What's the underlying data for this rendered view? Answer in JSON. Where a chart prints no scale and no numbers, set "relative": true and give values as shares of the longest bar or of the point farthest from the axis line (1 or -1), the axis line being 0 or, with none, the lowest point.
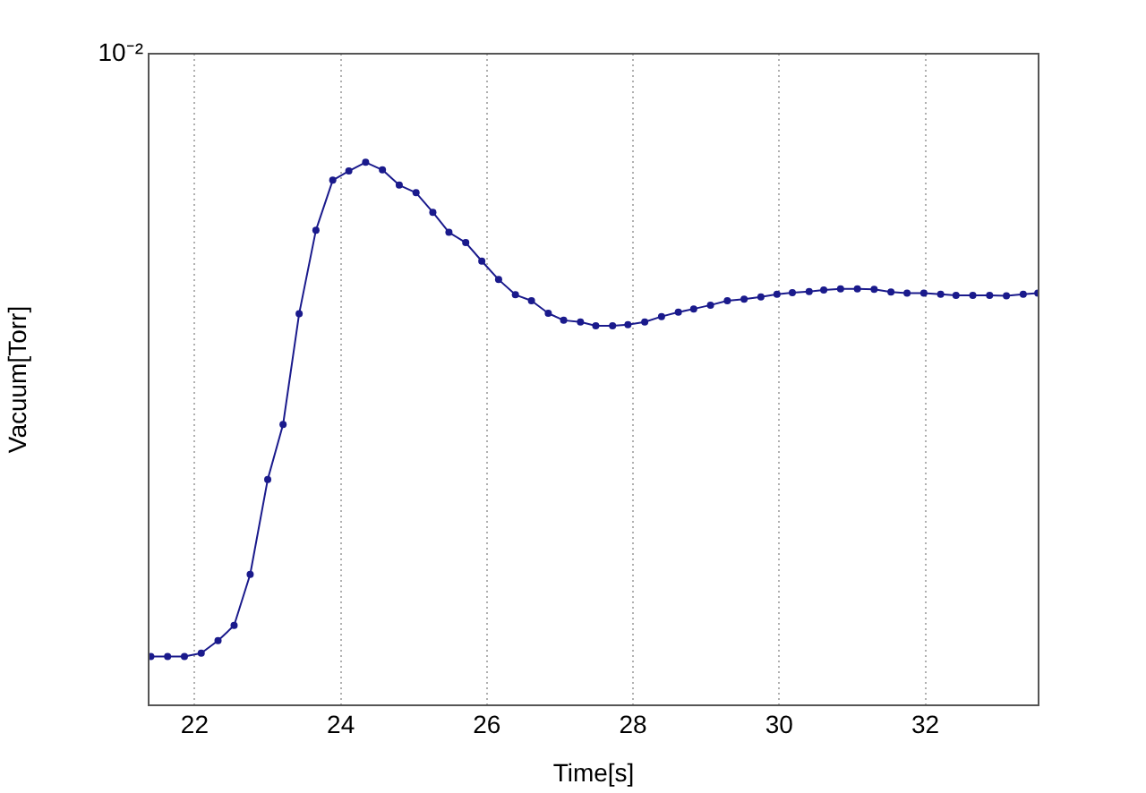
{
  "chart_data": {
    "type": "line",
    "xlabel": "Time[s]",
    "ylabel": "Vacuum[Torr]",
    "relative": true,
    "annotations": [
      "10⁻²"
    ],
    "x": [
      21.4,
      21.63,
      21.86,
      22.09,
      22.32,
      22.54,
      22.76,
      23.0,
      23.21,
      23.43,
      23.66,
      23.89,
      24.11,
      24.34,
      24.57,
      24.8,
      25.03,
      25.26,
      25.48,
      25.71,
      25.93,
      26.16,
      26.39,
      26.61,
      26.84,
      27.05,
      27.28,
      27.49,
      27.72,
      27.93,
      28.16,
      28.39,
      28.62,
      28.83,
      29.06,
      29.29,
      29.52,
      29.75,
      29.97,
      30.18,
      30.41,
      30.61,
      30.84,
      31.07,
      31.3,
      31.53,
      31.75,
      31.98,
      32.21,
      32.42,
      32.65,
      32.88,
      33.11,
      33.34,
      33.54
    ],
    "series": [
      {
        "color": "#1a1a8c",
        "values": [
          0.09,
          0.09,
          0.09,
          0.096,
          0.119,
          0.147,
          0.241,
          0.416,
          0.517,
          0.721,
          0.875,
          0.967,
          0.984,
          1,
          0.986,
          0.958,
          0.944,
          0.908,
          0.871,
          0.852,
          0.818,
          0.784,
          0.756,
          0.745,
          0.722,
          0.709,
          0.706,
          0.699,
          0.699,
          0.701,
          0.706,
          0.716,
          0.724,
          0.73,
          0.737,
          0.745,
          0.748,
          0.752,
          0.757,
          0.76,
          0.762,
          0.765,
          0.767,
          0.767,
          0.766,
          0.761,
          0.759,
          0.759,
          0.757,
          0.755,
          0.755,
          0.755,
          0.754,
          0.757,
          0.759
        ]
      }
    ],
    "xlim": [
      21.37,
      33.55
    ],
    "xticks": [
      22,
      24,
      26,
      28,
      30,
      32
    ],
    "grid": "x",
    "marker": "circle",
    "line_style": "solid"
  }
}
